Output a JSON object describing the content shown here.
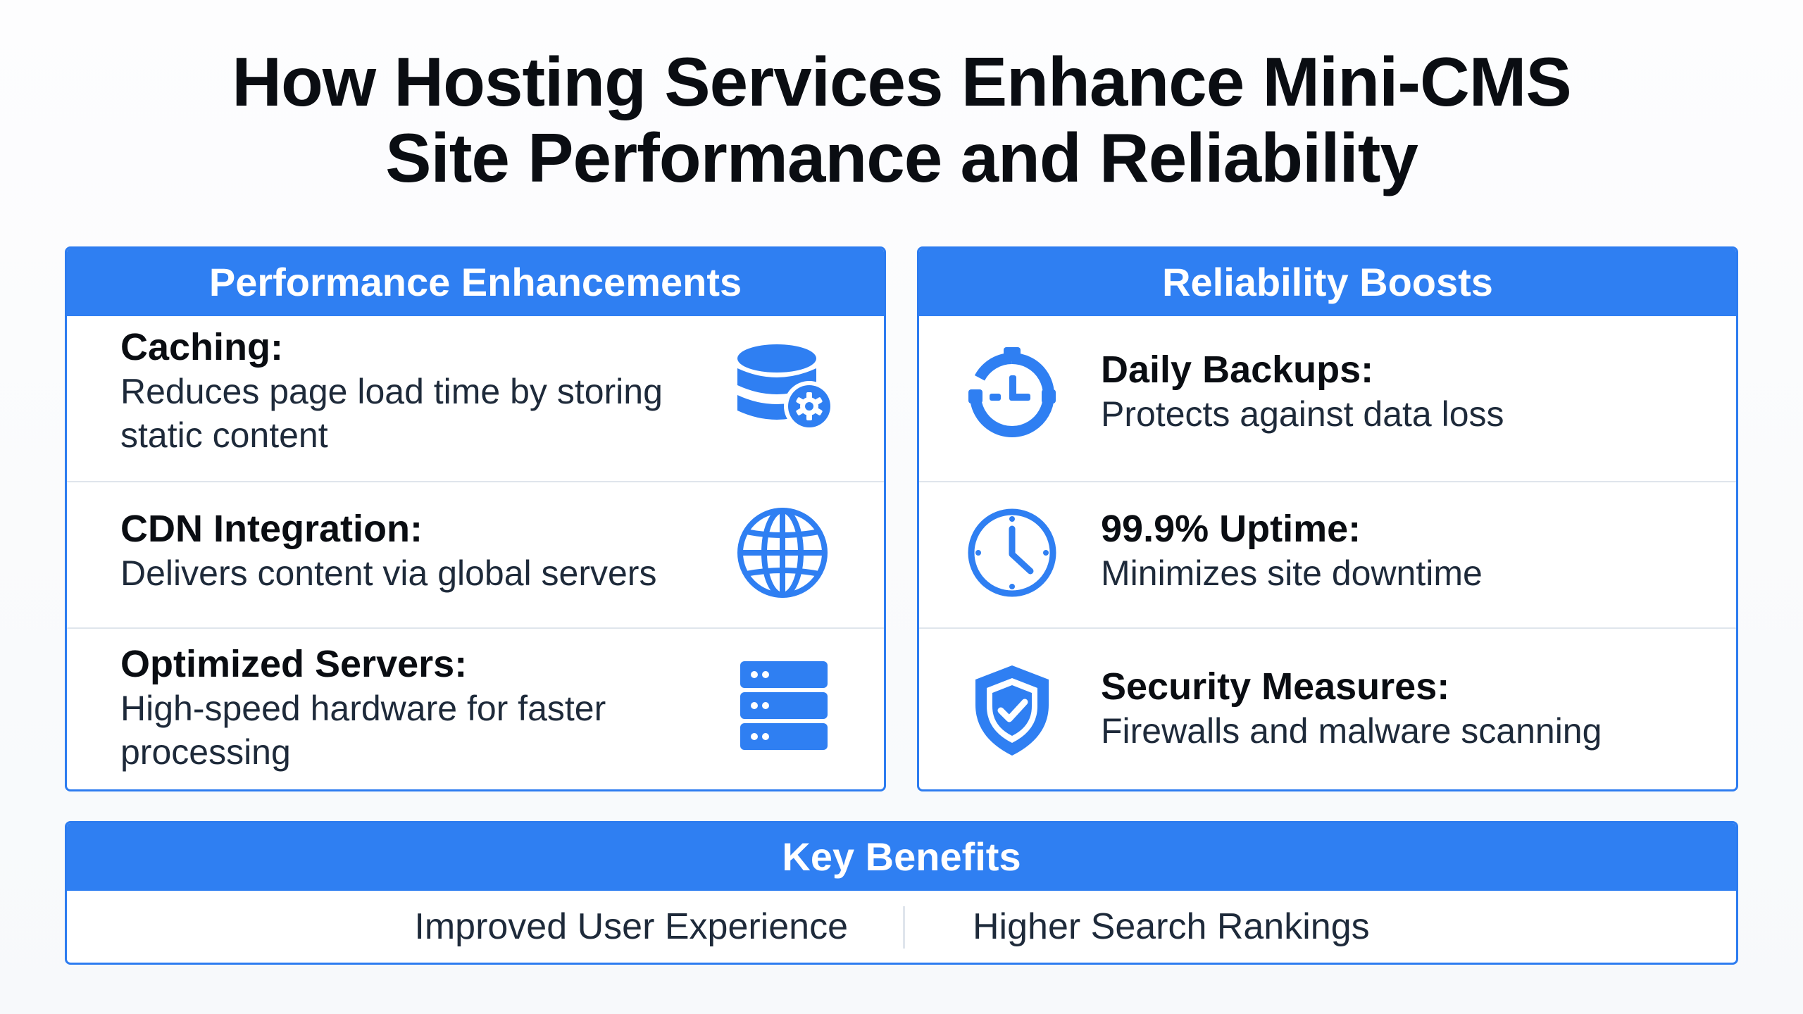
{
  "title": {
    "line1": "How Hosting Services Enhance Mini-CMS",
    "line2": "Site Performance and Reliability"
  },
  "colors": {
    "accent": "#2f7ff2",
    "border": "#2d7cf0",
    "divider": "#dfe5ec",
    "text_dark": "#0a0d12",
    "text_body": "#1e2a3a"
  },
  "performance": {
    "header": "Performance Enhancements",
    "items": [
      {
        "title": "Caching:",
        "description": "Reduces page load time by storing static content",
        "icon": "database-gear-icon"
      },
      {
        "title": "CDN Integration:",
        "description": "Delivers content via global servers",
        "icon": "globe-icon"
      },
      {
        "title": "Optimized Servers:",
        "description": "High-speed hardware for faster processing",
        "icon": "server-stack-icon"
      }
    ]
  },
  "reliability": {
    "header": "Reliability Boosts",
    "items": [
      {
        "title": "Daily Backups:",
        "description": "Protects against data loss",
        "icon": "backup-clock-icon"
      },
      {
        "title": "99.9% Uptime:",
        "description": "Minimizes site downtime",
        "icon": "clock-icon"
      },
      {
        "title": "Security Measures:",
        "description": "Firewalls and malware scanning",
        "icon": "shield-check-icon"
      }
    ]
  },
  "key_benefits": {
    "header": "Key Benefits",
    "items": [
      "Improved User Experience",
      "Higher Search Rankings"
    ]
  }
}
